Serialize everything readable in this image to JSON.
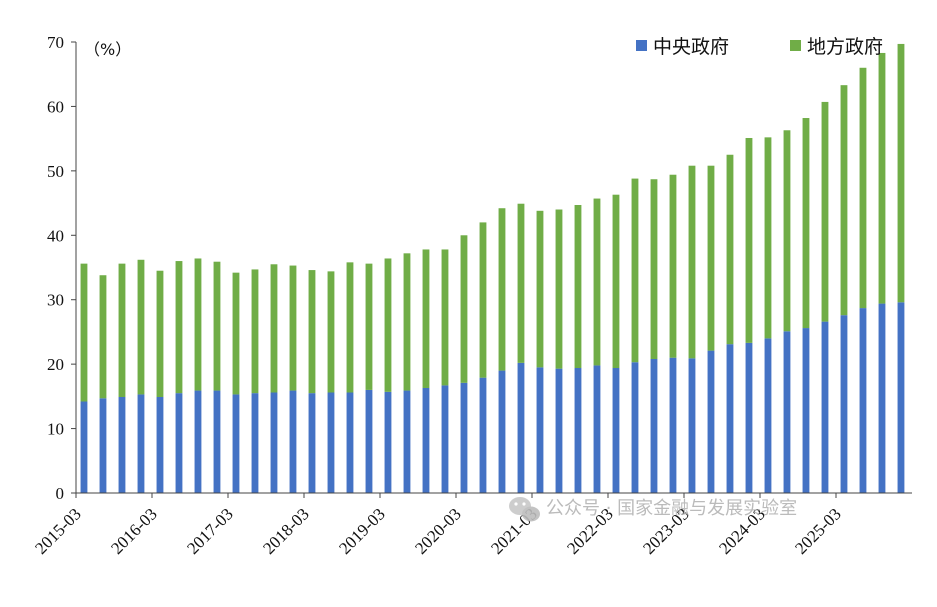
{
  "chart_data": {
    "type": "bar",
    "stacked": true,
    "ylim": [
      0,
      70
    ],
    "yticks": [
      0,
      10,
      20,
      30,
      40,
      50,
      60,
      70
    ],
    "unit_label": "（%）",
    "legend_position": "top-right",
    "grid": false,
    "x_tick_labels": [
      "2015-03",
      "2016-03",
      "2017-03",
      "2018-03",
      "2019-03",
      "2020-03",
      "2021-03",
      "2022-03",
      "2023-03",
      "2024-03",
      "2025-03"
    ],
    "categories": [
      "2015-03",
      "2015-06",
      "2015-09",
      "2015-12",
      "2016-03",
      "2016-06",
      "2016-09",
      "2016-12",
      "2017-03",
      "2017-06",
      "2017-09",
      "2017-12",
      "2018-03",
      "2018-06",
      "2018-09",
      "2018-12",
      "2019-03",
      "2019-06",
      "2019-09",
      "2019-12",
      "2020-03",
      "2020-06",
      "2020-09",
      "2020-12",
      "2021-03",
      "2021-06",
      "2021-09",
      "2021-12",
      "2022-03",
      "2022-06",
      "2022-09",
      "2022-12",
      "2023-03",
      "2023-06",
      "2023-09",
      "2023-12",
      "2024-03",
      "2024-06",
      "2024-09",
      "2024-12",
      "2025-03",
      "2025-06",
      "2025-09",
      "2025-12"
    ],
    "series": [
      {
        "name": "中央政府",
        "color": "#4472C4",
        "values": [
          14.2,
          14.7,
          14.9,
          15.3,
          14.9,
          15.5,
          15.9,
          15.9,
          15.3,
          15.5,
          15.6,
          15.9,
          15.5,
          15.6,
          15.6,
          16.0,
          15.7,
          15.9,
          16.3,
          16.7,
          17.1,
          17.9,
          19.0,
          20.2,
          19.5,
          19.3,
          19.4,
          19.8,
          19.4,
          20.3,
          20.8,
          21.0,
          20.9,
          22.1,
          23.1,
          23.3,
          24.0,
          25.1,
          25.6,
          26.6,
          27.6,
          28.7,
          29.4,
          29.6
        ]
      },
      {
        "name": "地方政府",
        "color": "#70AD47",
        "values": [
          21.4,
          19.1,
          20.7,
          20.9,
          19.6,
          20.5,
          20.5,
          20.0,
          18.9,
          19.2,
          19.9,
          19.4,
          19.1,
          18.8,
          20.2,
          19.6,
          20.7,
          21.3,
          21.5,
          21.1,
          22.9,
          24.1,
          25.2,
          24.7,
          24.3,
          24.7,
          25.3,
          25.9,
          26.9,
          28.5,
          27.9,
          28.4,
          29.9,
          28.7,
          29.4,
          31.8,
          31.2,
          31.2,
          32.6,
          34.1,
          35.7,
          37.3,
          38.9,
          40.1
        ]
      }
    ]
  },
  "watermark": {
    "text": "公众号 · 国家金融与发展实验室",
    "icon": "wechat-icon"
  }
}
